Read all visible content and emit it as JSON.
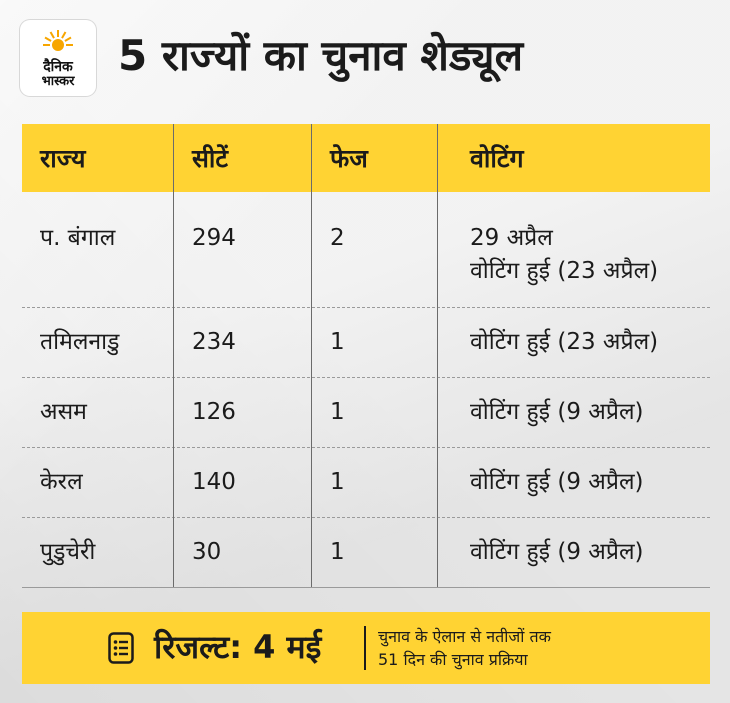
{
  "logo": {
    "line1": "दैनिक",
    "line2": "भास्कर",
    "accent": "#f7a600"
  },
  "title": "5 राज्यों का चुनाव शेड्यूल",
  "table": {
    "headers": [
      "राज्य",
      "सीटें",
      "फेज",
      "वोटिंग"
    ],
    "rows": [
      {
        "state": "प. बंगाल",
        "seats": "294",
        "phases": "2",
        "voting": [
          "29 अप्रैल",
          "वोटिंग हुई (23 अप्रैल)"
        ]
      },
      {
        "state": "तमिलनाडु",
        "seats": "234",
        "phases": "1",
        "voting": [
          "वोटिंग हुई (23 अप्रैल)"
        ]
      },
      {
        "state": "असम",
        "seats": "126",
        "phases": "1",
        "voting": [
          "वोटिंग हुई (9 अप्रैल)"
        ]
      },
      {
        "state": "केरल",
        "seats": "140",
        "phases": "1",
        "voting": [
          "वोटिंग हुई (9 अप्रैल)"
        ]
      },
      {
        "state": "पुडुचेरी",
        "seats": "30",
        "phases": "1",
        "voting": [
          "वोटिंग हुई (9 अप्रैल)"
        ]
      }
    ]
  },
  "footer": {
    "result": "रिजल्ट: 4 मई",
    "note_line1": "चुनाव के ऐलान से नतीजों तक",
    "note_line2": "51 दिन की चुनाव प्रक्रिया",
    "icon": "list-icon"
  },
  "colors": {
    "highlight": "#ffd333",
    "text": "#1b1b1b",
    "background": "#ececec"
  }
}
